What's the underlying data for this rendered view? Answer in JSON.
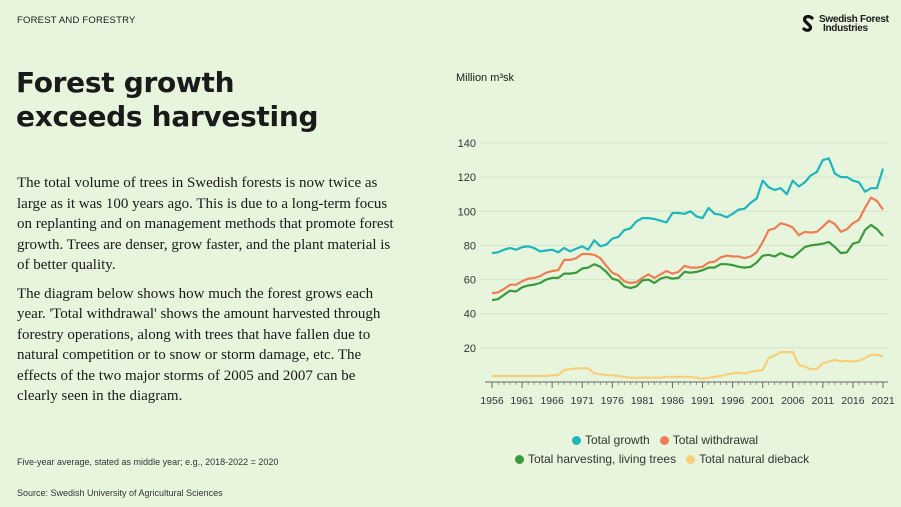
{
  "header": {
    "section": "FOREST AND FORESTRY",
    "logo_text_1": "Swedish Forest",
    "logo_text_2": "Industries"
  },
  "title_line1": "Forest growth",
  "title_line2": "exceeds harvesting",
  "paragraph1": "The total volume of trees in Swedish forests is now twice as large as it was 100 years ago. This is due to a long-term focus on replanting and on management methods that promote forest growth. Trees are denser, grow faster, and the plant material is of better quality.",
  "paragraph2": "The diagram below shows how much the forest grows each year. 'Total withdrawal' shows the amount harvested through forestry operations, along with trees that have fallen due to natural competition or to snow or storm damage, etc. The effects of the two major storms of 2005 and 2007 can be clearly seen in the diagram.",
  "footnote": "Five-year average, stated as middle year; e.g., 2018-2022 = 2020",
  "source": "Source: Swedish University of Agricultural Sciences",
  "chart_data": {
    "type": "line",
    "ylabel": "Million m³sk",
    "ylim": [
      0,
      140
    ],
    "yticks": [
      20,
      40,
      60,
      80,
      100,
      120,
      140
    ],
    "xticks": [
      1956,
      1961,
      1966,
      1971,
      1976,
      1981,
      1986,
      1991,
      1996,
      2001,
      2006,
      2011,
      2016,
      2021
    ],
    "x_start": 1956,
    "grid": true,
    "legend_position": "bottom",
    "series": [
      {
        "name": "Total growth",
        "color": "#1fb5bd",
        "values": [
          75.5,
          76,
          77.5,
          78.5,
          77.5,
          79,
          79.5,
          78.5,
          76.5,
          77,
          77.5,
          76,
          78.5,
          76.5,
          78,
          79.5,
          77.5,
          83,
          79.5,
          80.5,
          84,
          85,
          89,
          90,
          94,
          96,
          96,
          95.5,
          94.5,
          93.5,
          99,
          99,
          98.5,
          100,
          97,
          96,
          102,
          98.5,
          98,
          96.5,
          98.5,
          101,
          101.5,
          105,
          107.5,
          118,
          114,
          112.5,
          113.5,
          110,
          118,
          114.5,
          117,
          121,
          123,
          130,
          131,
          122,
          120,
          120,
          118,
          117,
          111.5,
          113.5,
          113.5,
          125
        ]
      },
      {
        "name": "Total withdrawal",
        "color": "#ee7d55",
        "values": [
          52,
          52.5,
          54.5,
          57,
          57,
          59,
          60.5,
          61,
          62,
          64,
          65,
          65.5,
          71.5,
          71.5,
          72.5,
          75,
          75,
          74.5,
          72.5,
          68,
          64,
          62.5,
          59,
          58,
          58.5,
          61,
          63,
          61,
          63,
          65,
          63.5,
          64.5,
          68,
          67,
          67,
          67.5,
          70,
          70.5,
          73,
          74,
          73.5,
          73.5,
          72.5,
          73.5,
          76,
          82,
          89,
          90,
          93,
          92,
          90.5,
          86,
          88,
          87.5,
          88,
          91,
          94.5,
          92.5,
          88,
          89.5,
          93,
          95,
          102,
          108,
          106,
          101
        ]
      },
      {
        "name": "Total harvesting, living trees",
        "color": "#3a9a3a",
        "values": [
          48,
          48.5,
          51,
          53.5,
          53,
          55.5,
          56.5,
          57,
          58,
          60,
          61,
          61,
          63.5,
          63.5,
          64,
          66.5,
          67,
          69,
          67.5,
          64.5,
          60.5,
          59.5,
          56,
          55,
          56,
          59.5,
          60,
          58,
          60.5,
          61.5,
          60.5,
          61,
          64.5,
          64,
          64.5,
          65.5,
          67,
          67,
          69,
          69,
          68.5,
          67.5,
          67,
          67.5,
          70,
          74,
          74.5,
          73.5,
          75.5,
          74,
          73,
          76,
          79,
          80,
          80.5,
          81,
          82,
          79,
          75.5,
          76,
          81,
          82,
          89,
          92,
          89.5,
          85.5
        ]
      },
      {
        "name": "Total natural dieback",
        "color": "#f8cf78",
        "values": [
          3.5,
          3.5,
          3.5,
          3.5,
          3.5,
          3.5,
          3.5,
          3.5,
          3.5,
          3.5,
          4,
          4,
          7,
          7.5,
          8,
          8,
          8,
          5,
          4.5,
          4,
          4,
          3.5,
          3,
          2.5,
          2.5,
          2.5,
          2.5,
          2.5,
          2.5,
          3,
          3,
          3,
          3,
          3,
          2.5,
          2,
          2.5,
          3,
          3.5,
          4.5,
          5,
          5.5,
          5,
          6,
          6.5,
          7,
          14,
          15.5,
          17.5,
          17.5,
          17.5,
          10,
          9,
          7.5,
          7.5,
          11,
          12,
          13,
          12,
          12.5,
          12,
          12.5,
          14,
          16,
          16,
          15
        ]
      }
    ]
  }
}
